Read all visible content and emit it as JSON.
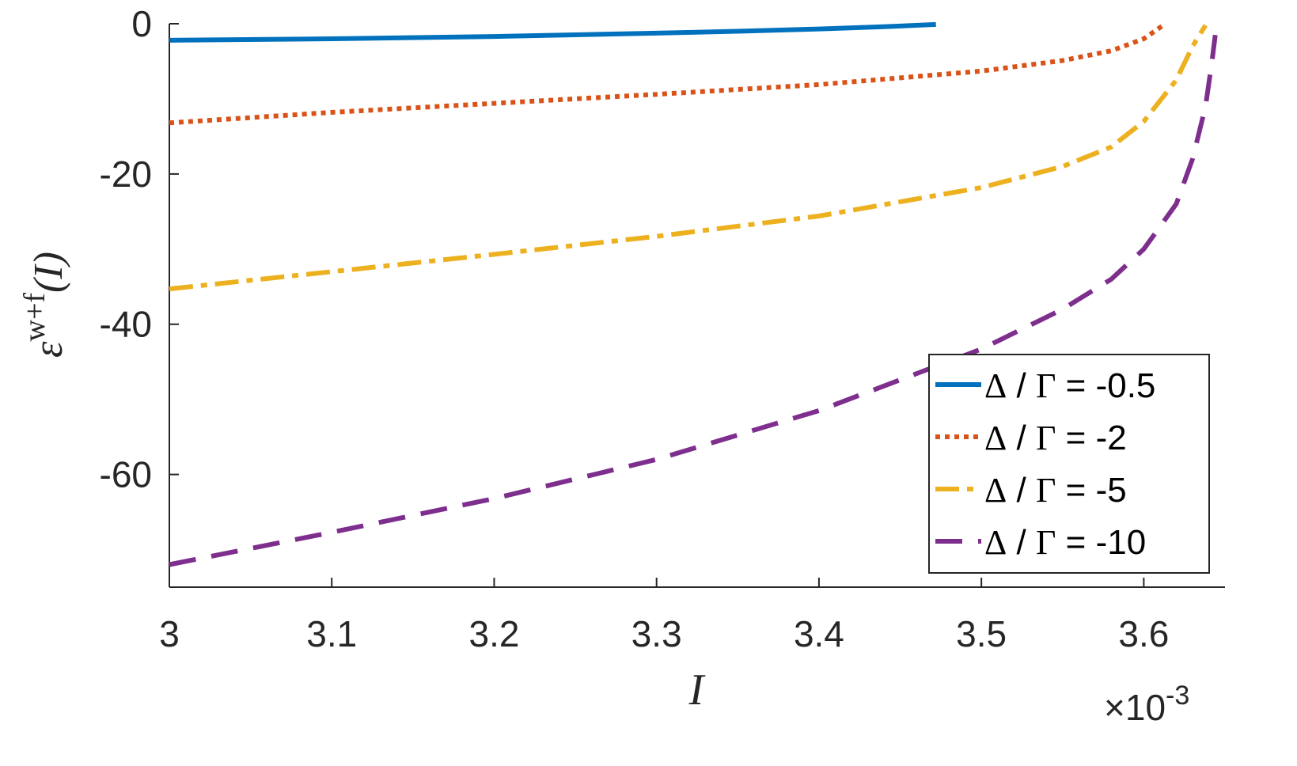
{
  "chart_data": {
    "type": "line",
    "xlabel": "I",
    "ylabel": "ε",
    "ylabel_sup": "w+f",
    "ylabel_arg": "(I)",
    "x_exponent_label": "×10",
    "x_exponent_power": "-3",
    "xlim": [
      3.0,
      3.65
    ],
    "ylim": [
      -75,
      0
    ],
    "x_ticks": [
      3.0,
      3.1,
      3.2,
      3.3,
      3.4,
      3.5,
      3.6
    ],
    "x_tick_labels": [
      "3",
      "3.1",
      "3.2",
      "3.3",
      "3.4",
      "3.5",
      "3.6"
    ],
    "y_ticks": [
      0,
      -20,
      -40,
      -60
    ],
    "y_tick_labels": [
      "0",
      "-20",
      "-40",
      "-60"
    ],
    "grid": false,
    "legend_position": "bottom-right",
    "series": [
      {
        "name": "Δ / Γ = -0.5",
        "legend_symbol": "Δ",
        "legend_sep": "/",
        "legend_symbol2": "Γ",
        "legend_value": "= -0.5",
        "color": "#0072BD",
        "dash": "solid",
        "x": [
          3.0,
          3.1,
          3.2,
          3.3,
          3.35,
          3.4,
          3.44,
          3.472
        ],
        "y": [
          -2.2,
          -2.0,
          -1.7,
          -1.25,
          -1.0,
          -0.7,
          -0.4,
          -0.1
        ]
      },
      {
        "name": "Δ / Γ = -2",
        "legend_symbol": "Δ",
        "legend_sep": "/",
        "legend_symbol2": "Γ",
        "legend_value": "= -2",
        "color": "#D95319",
        "dash": "dotted",
        "x": [
          3.0,
          3.1,
          3.2,
          3.3,
          3.4,
          3.5,
          3.55,
          3.58,
          3.6,
          3.612
        ],
        "y": [
          -13.2,
          -11.8,
          -10.6,
          -9.4,
          -8.1,
          -6.3,
          -4.9,
          -3.6,
          -2.0,
          -0.2
        ]
      },
      {
        "name": "Δ / Γ = -5",
        "legend_symbol": "Δ",
        "legend_sep": "/",
        "legend_symbol2": "Γ",
        "legend_value": "= -5",
        "color": "#EDB120",
        "dash": "dashdot",
        "x": [
          3.0,
          3.1,
          3.2,
          3.3,
          3.4,
          3.5,
          3.55,
          3.58,
          3.6,
          3.62,
          3.63,
          3.638
        ],
        "y": [
          -35.3,
          -33.0,
          -30.7,
          -28.3,
          -25.6,
          -21.8,
          -19.0,
          -16.4,
          -13.0,
          -7.5,
          -3.0,
          -0.2
        ]
      },
      {
        "name": "Δ / Γ = -10",
        "legend_symbol": "Δ",
        "legend_sep": "/",
        "legend_symbol2": "Γ",
        "legend_value": "= -10",
        "color": "#7E2F8E",
        "dash": "dashed",
        "x": [
          3.0,
          3.1,
          3.2,
          3.3,
          3.4,
          3.5,
          3.55,
          3.58,
          3.6,
          3.62,
          3.63,
          3.638,
          3.642,
          3.644
        ],
        "y": [
          -72.0,
          -67.7,
          -63.2,
          -58.0,
          -51.5,
          -43.3,
          -38.0,
          -34.0,
          -30.0,
          -24.0,
          -18.0,
          -11.0,
          -5.0,
          -1.5
        ]
      }
    ]
  }
}
